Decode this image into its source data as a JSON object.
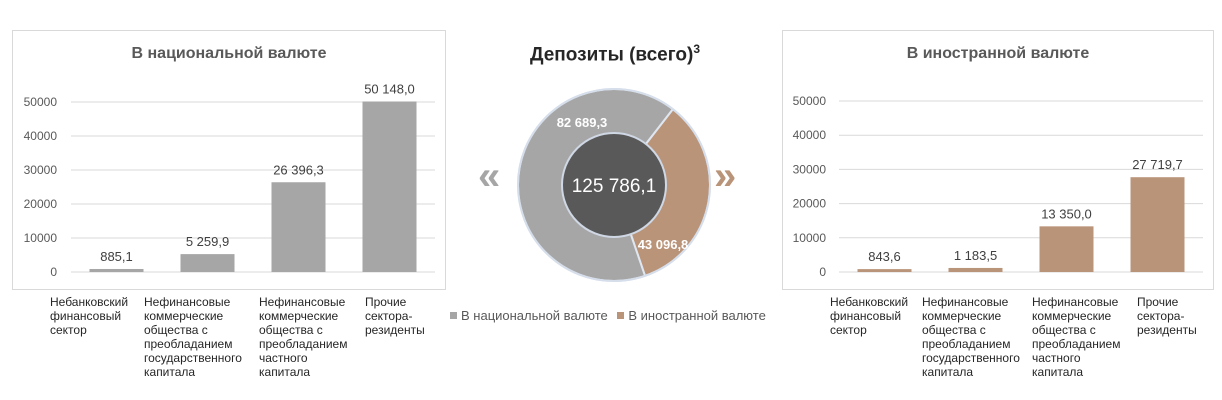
{
  "chart_data": [
    {
      "type": "bar",
      "title": "В национальной валюте",
      "categories": [
        "Небанковский финансовый сектор",
        "Нефинансовые коммерческие общества с преобладанием государственного капитала",
        "Нефинансовые коммерческие общества с преобладанием частного капитала",
        "Прочие сектора-резиденты"
      ],
      "values": [
        885.1,
        5259.9,
        26396.3,
        50148.0
      ],
      "value_labels": [
        "885,1",
        "5 259,9",
        "26 396,3",
        "50 148,0"
      ],
      "ylim": [
        0,
        50000
      ],
      "yticks": [
        "0",
        "10000",
        "20000",
        "30000",
        "40000",
        "50000"
      ],
      "grid": true,
      "color": "#a6a6a6"
    },
    {
      "type": "pie",
      "title": "Депозиты (всего)",
      "title_sup": "3",
      "total_label": "125 786,1",
      "slices": [
        {
          "name": "В национальной валюте",
          "value": 82689.3,
          "label": "82 689,3",
          "color": "#a6a6a6"
        },
        {
          "name": "В иностранной валюте",
          "value": 43096.8,
          "label": "43 096,8",
          "color": "#b99479"
        }
      ],
      "legend_position": "bottom",
      "hole_color": "#595959"
    },
    {
      "type": "bar",
      "title": "В иностранной валюте",
      "categories": [
        "Небанковский финансовый сектор",
        "Нефинансовые коммерческие общества с преобладанием государственного капитала",
        "Нефинансовые коммерческие общества с преобладанием частного капитала",
        "Прочие сектора-резиденты"
      ],
      "values": [
        843.6,
        1183.5,
        13350.0,
        27719.7
      ],
      "value_labels": [
        "843,6",
        "1 183,5",
        "13 350,0",
        "27 719,7"
      ],
      "ylim": [
        0,
        50000
      ],
      "yticks": [
        "0",
        "10000",
        "20000",
        "30000",
        "40000",
        "50000"
      ],
      "grid": true,
      "color": "#b99479"
    }
  ],
  "nav": {
    "prev_glyph": "«",
    "next_glyph": "»"
  }
}
